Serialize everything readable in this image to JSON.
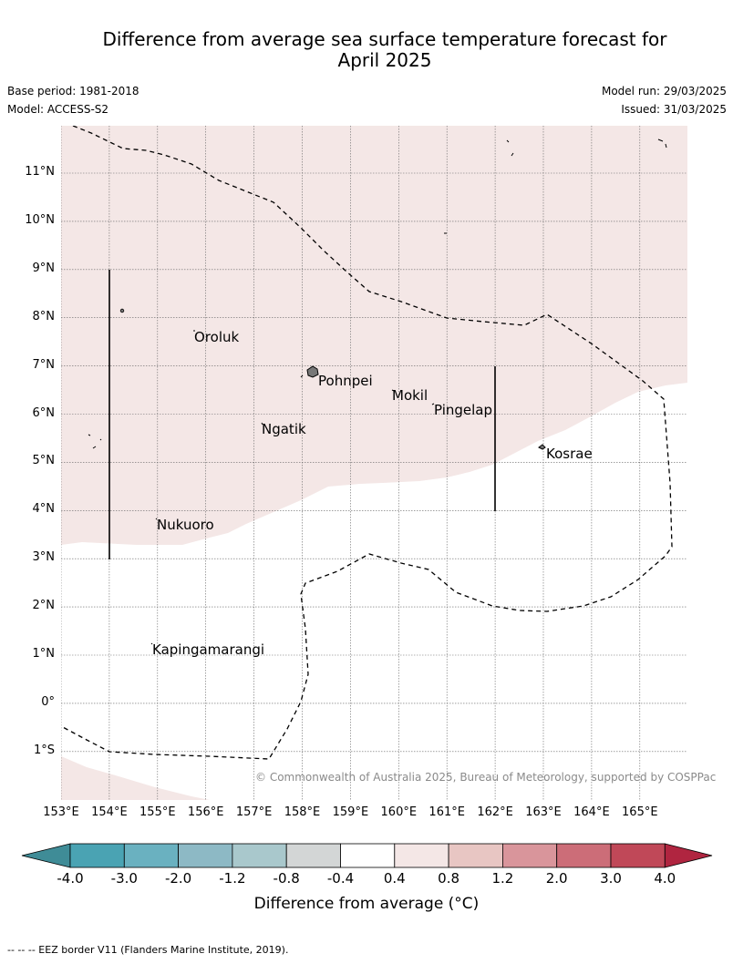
{
  "title_line1": "Difference from average sea surface temperature forecast for",
  "title_line2": "April 2025",
  "base_period": "Base period: 1981-2018",
  "model": "Model: ACCESS-S2",
  "model_run": "Model run: 29/03/2025",
  "issued": "Issued: 31/03/2025",
  "copyright": "© Commonwealth of Australia 2025, Bureau of Meteorology, supported by COSPPac",
  "lat_labels": [
    "11°N",
    "10°N",
    "9°N",
    "8°N",
    "7°N",
    "6°N",
    "5°N",
    "4°N",
    "3°N",
    "2°N",
    "1°N",
    "0°",
    "1°S"
  ],
  "lon_labels": [
    "153°E",
    "154°E",
    "155°E",
    "156°E",
    "157°E",
    "158°E",
    "159°E",
    "160°E",
    "161°E",
    "162°E",
    "163°E",
    "164°E",
    "165°E"
  ],
  "places": {
    "oroluk": "Oroluk",
    "pohnpei": "Pohnpei",
    "mokil": "Mokil",
    "pingelap": "Pingelap",
    "ngatik": "Ngatik",
    "kosrae": "Kosrae",
    "nukuoro": "Nukuoro",
    "kapingamarangi": "Kapingamarangi"
  },
  "colorbar": {
    "ticks": [
      "-4.0",
      "-3.0",
      "-2.0",
      "-1.2",
      "-0.8",
      "-0.4",
      "0.4",
      "0.8",
      "1.2",
      "2.0",
      "3.0",
      "4.0"
    ],
    "colors": [
      "#3f8c97",
      "#4aa3b3",
      "#6ab1c0",
      "#8db9c5",
      "#a9c8cc",
      "#d3d6d6",
      "#ffffff",
      "#f4e7e6",
      "#e8c6c3",
      "#d9959b",
      "#cc6d78",
      "#c04858",
      "#b02540"
    ],
    "label": "Difference from average (°C)"
  },
  "footnote": "--  --  -- EEZ border V11 (Flanders Marine Institute, 2019)."
}
